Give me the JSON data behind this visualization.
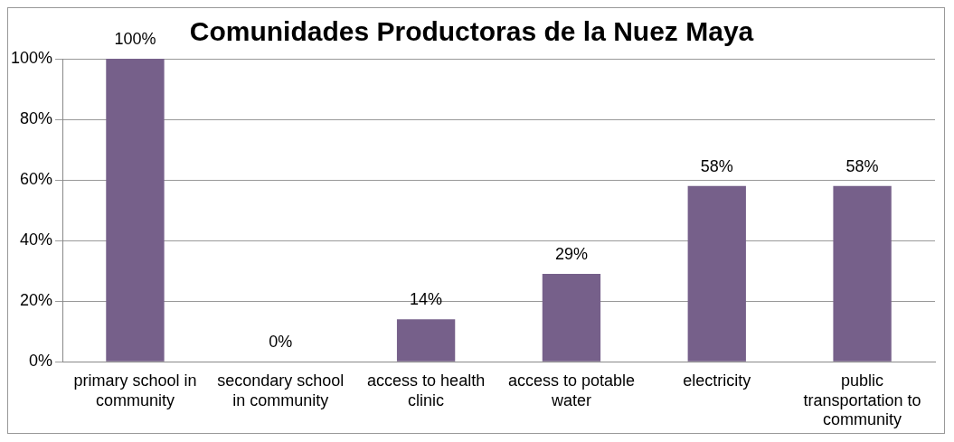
{
  "chart_data": {
    "type": "bar",
    "title": "Comunidades Productoras de la Nuez Maya",
    "categories": [
      "primary school in community",
      "secondary school in community",
      "access to health clinic",
      "access to potable water",
      "electricity",
      "public transportation to community"
    ],
    "values": [
      100,
      0,
      14,
      29,
      58,
      58
    ],
    "value_labels": [
      "100%",
      "0%",
      "14%",
      "29%",
      "58%",
      "58%"
    ],
    "color": "#76608a",
    "ylim": [
      0,
      100
    ],
    "yticks": [
      {
        "value": 0,
        "label": "0%"
      },
      {
        "value": 20,
        "label": "20%"
      },
      {
        "value": 40,
        "label": "40%"
      },
      {
        "value": 60,
        "label": "60%"
      },
      {
        "value": 80,
        "label": "80%"
      },
      {
        "value": 100,
        "label": "100%"
      }
    ],
    "grid": "y",
    "legend": false
  }
}
